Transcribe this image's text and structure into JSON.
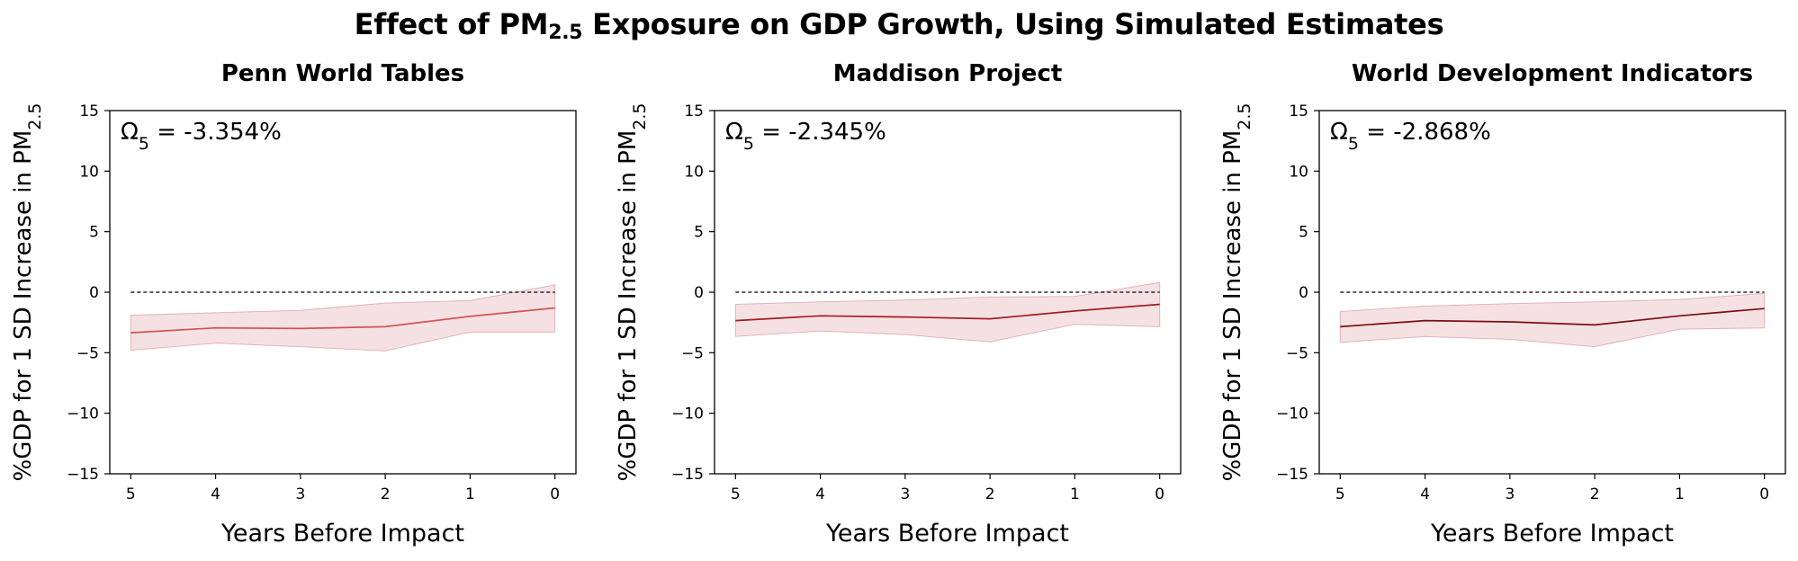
{
  "title": {
    "prefix": "Effect of PM",
    "subscript": "2.5",
    "suffix": " Exposure on GDP Growth, Using Simulated Estimates"
  },
  "colors": {
    "band": "#f2d7d9",
    "band_edge": "#e2b3b8",
    "zero_line": "#000000"
  },
  "chart_data": [
    {
      "type": "line",
      "title": "Penn World Tables",
      "xlabel": "Years Before Impact",
      "ylabel": "%GDP for 1 SD Increase in PM",
      "ylabel_sub": "2.5",
      "x": [
        5,
        4,
        3,
        2,
        1,
        0
      ],
      "xlim": [
        5,
        0
      ],
      "ylim": [
        -15,
        15
      ],
      "xticks": [
        "5",
        "4",
        "3",
        "2",
        "1",
        "0"
      ],
      "yticks": [
        "15",
        "10",
        "5",
        "0",
        "−5",
        "−10",
        "−15"
      ],
      "series": [
        {
          "values": [
            -3.35,
            -2.95,
            -3.0,
            -2.85,
            -2.0,
            -1.3
          ],
          "lower": [
            -4.8,
            -4.2,
            -4.5,
            -4.85,
            -3.3,
            -3.3
          ],
          "upper": [
            -1.9,
            -1.7,
            -1.5,
            -0.9,
            -0.7,
            0.6
          ],
          "color": "#d05454"
        }
      ],
      "reference_line": 0,
      "annotation": {
        "symbol": "Ω",
        "sub": "5",
        "text": " = -3.354%"
      },
      "grid": false
    },
    {
      "type": "line",
      "title": "Maddison Project",
      "xlabel": "Years Before Impact",
      "ylabel": "%GDP for 1 SD Increase in PM",
      "ylabel_sub": "2.5",
      "x": [
        5,
        4,
        3,
        2,
        1,
        0
      ],
      "xlim": [
        5,
        0
      ],
      "ylim": [
        -15,
        15
      ],
      "xticks": [
        "5",
        "4",
        "3",
        "2",
        "1",
        "0"
      ],
      "yticks": [
        "15",
        "10",
        "5",
        "0",
        "−5",
        "−10",
        "−15"
      ],
      "series": [
        {
          "values": [
            -2.35,
            -1.95,
            -2.05,
            -2.2,
            -1.55,
            -1.0
          ],
          "lower": [
            -3.65,
            -3.2,
            -3.5,
            -4.1,
            -2.65,
            -2.85
          ],
          "upper": [
            -1.0,
            -0.8,
            -0.65,
            -0.4,
            -0.35,
            0.8
          ],
          "color": "#a31c22"
        }
      ],
      "reference_line": 0,
      "annotation": {
        "symbol": "Ω",
        "sub": "5",
        "text": " = -2.345%"
      },
      "grid": false
    },
    {
      "type": "line",
      "title": "World Development Indicators",
      "xlabel": "Years Before Impact",
      "ylabel": "%GDP for 1 SD Increase in PM",
      "ylabel_sub": "2.5",
      "x": [
        5,
        4,
        3,
        2,
        1,
        0
      ],
      "xlim": [
        5,
        0
      ],
      "ylim": [
        -15,
        15
      ],
      "xticks": [
        "5",
        "4",
        "3",
        "2",
        "1",
        "0"
      ],
      "yticks": [
        "15",
        "10",
        "5",
        "0",
        "−5",
        "−10",
        "−15"
      ],
      "series": [
        {
          "values": [
            -2.85,
            -2.35,
            -2.45,
            -2.7,
            -1.95,
            -1.35
          ],
          "lower": [
            -4.15,
            -3.65,
            -3.9,
            -4.5,
            -3.05,
            -2.95
          ],
          "upper": [
            -1.6,
            -1.15,
            -0.95,
            -0.8,
            -0.6,
            -0.1
          ],
          "color": "#7e0d12"
        }
      ],
      "reference_line": 0,
      "annotation": {
        "symbol": "Ω",
        "sub": "5",
        "text": " = -2.868%"
      },
      "grid": false
    }
  ]
}
